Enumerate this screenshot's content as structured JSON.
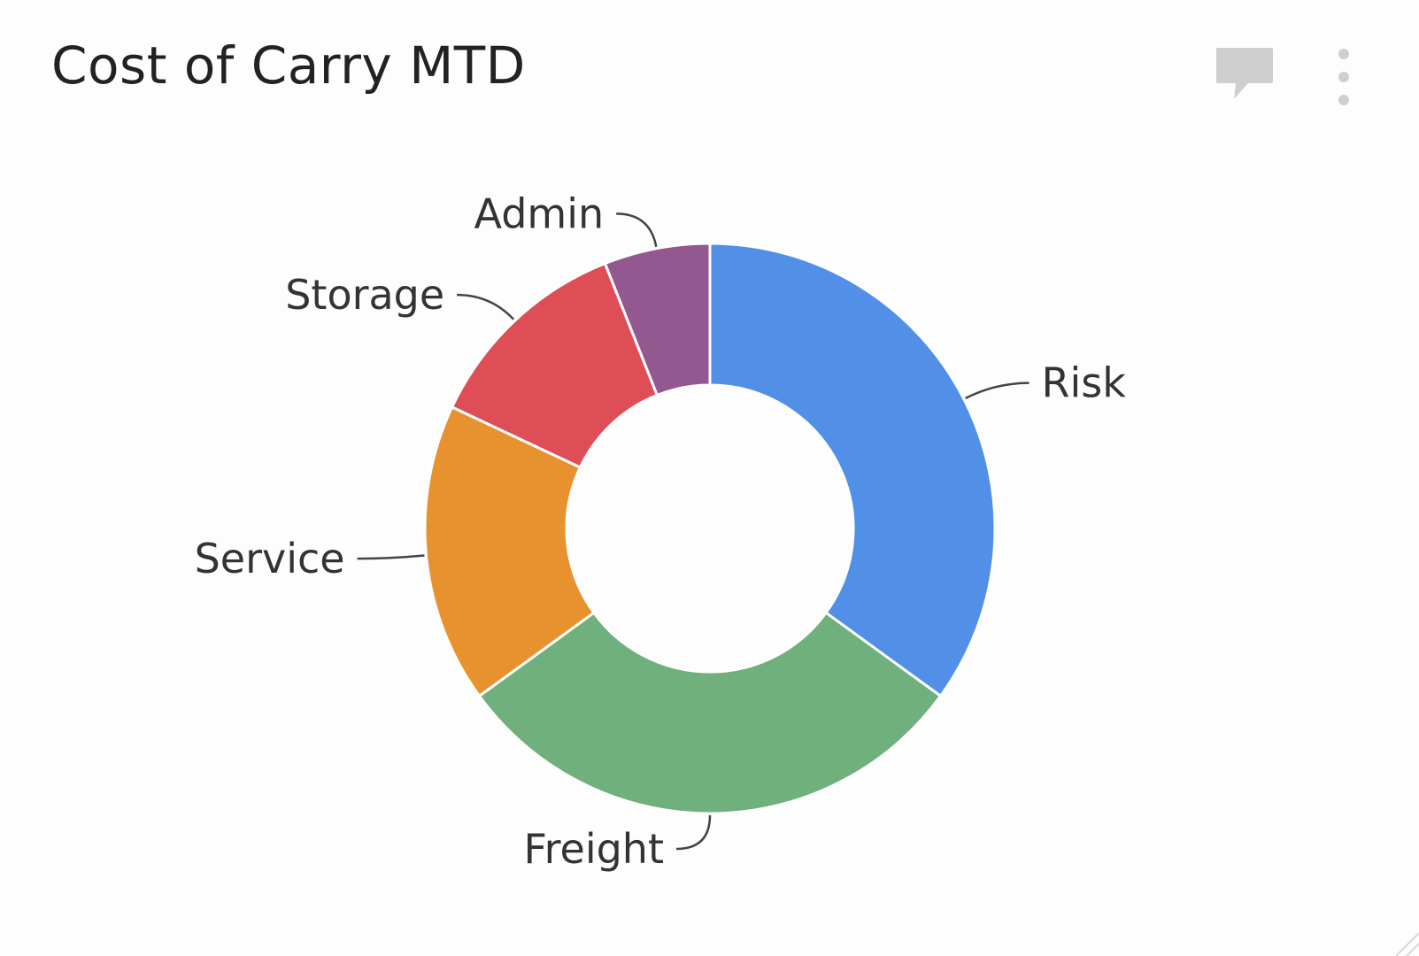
{
  "widget": {
    "title": "Cost of Carry MTD",
    "icons": {
      "comment": "comment-icon",
      "menu": "more-vertical-icon"
    },
    "icon_color": "#cfcfcf"
  },
  "chart_data": {
    "type": "pie",
    "donut": true,
    "title": "Cost of Carry MTD",
    "legend": "none",
    "slices": [
      {
        "label": "Risk",
        "value": 35,
        "color": "#5190e6"
      },
      {
        "label": "Freight",
        "value": 30,
        "color": "#6fb07c"
      },
      {
        "label": "Service",
        "value": 17,
        "color": "#e8912f"
      },
      {
        "label": "Storage",
        "value": 12,
        "color": "#df4d57"
      },
      {
        "label": "Admin",
        "value": 6,
        "color": "#93588f"
      }
    ]
  }
}
